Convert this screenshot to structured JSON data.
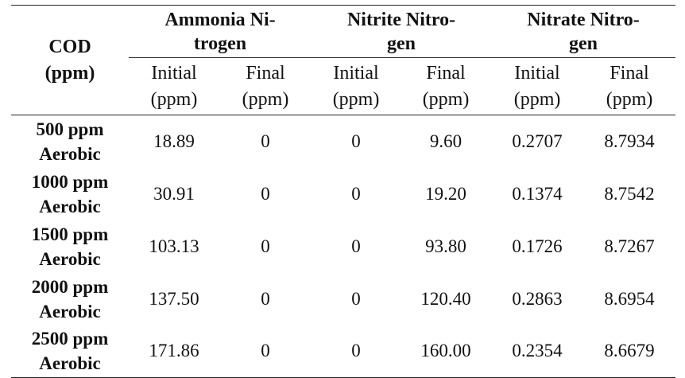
{
  "table": {
    "corner_header": [
      "COD",
      "(ppm)"
    ],
    "groups": [
      {
        "line1": "Ammonia Ni-",
        "line2": "trogen"
      },
      {
        "line1": "Nitrite Nitro-",
        "line2": "gen"
      },
      {
        "line1": "Nitrate Nitro-",
        "line2": "gen"
      }
    ],
    "subheaders": [
      {
        "line1": "Initial",
        "line2": "(ppm)"
      },
      {
        "line1": "Final",
        "line2": "(ppm)"
      },
      {
        "line1": "Initial",
        "line2": "(ppm)"
      },
      {
        "line1": "Final",
        "line2": "(ppm)"
      },
      {
        "line1": "Initial",
        "line2": "(ppm)"
      },
      {
        "line1": "Final",
        "line2": "(ppm)"
      }
    ],
    "rows": [
      {
        "label1": "500 ppm",
        "label2": "Aerobic",
        "cells": [
          "18.89",
          "0",
          "0",
          "9.60",
          "0.2707",
          "8.7934"
        ]
      },
      {
        "label1": "1000 ppm",
        "label2": "Aerobic",
        "cells": [
          "30.91",
          "0",
          "0",
          "19.20",
          "0.1374",
          "8.7542"
        ]
      },
      {
        "label1": "1500 ppm",
        "label2": "Aerobic",
        "cells": [
          "103.13",
          "0",
          "0",
          "93.80",
          "0.1726",
          "8.7267"
        ]
      },
      {
        "label1": "2000 ppm",
        "label2": "Aerobic",
        "cells": [
          "137.50",
          "0",
          "0",
          "120.40",
          "0.2863",
          "8.6954"
        ]
      },
      {
        "label1": "2500 ppm",
        "label2": "Aerobic",
        "cells": [
          "171.86",
          "0",
          "0",
          "160.00",
          "0.2354",
          "8.6679"
        ]
      }
    ]
  }
}
